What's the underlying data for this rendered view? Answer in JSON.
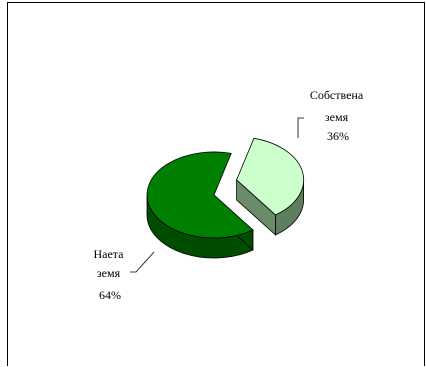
{
  "chart_data": {
    "type": "pie",
    "style": "3d-exploded",
    "title": "",
    "slices": [
      {
        "name": "Собствена земя",
        "label_lines": [
          "Собствена",
          "земя",
          "36%"
        ],
        "value": 36,
        "color": "#ccffcc",
        "exploded": true
      },
      {
        "name": "Наета земя",
        "label_lines": [
          "Наета",
          "земя",
          "64%"
        ],
        "value": 64,
        "color": "#008000",
        "exploded": false
      }
    ],
    "legend": "none",
    "data_labels": "outside with leader lines"
  }
}
